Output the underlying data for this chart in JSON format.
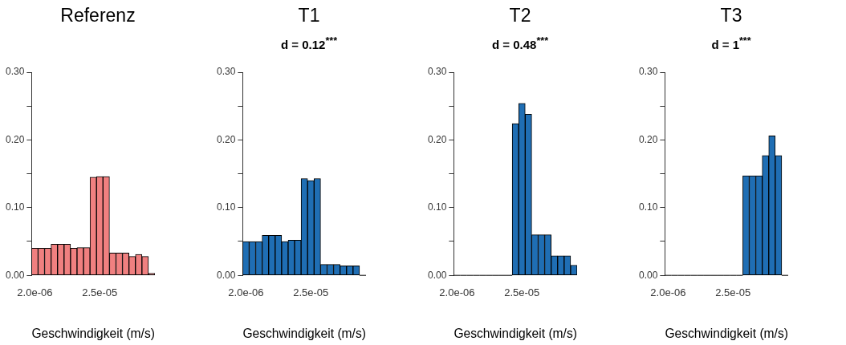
{
  "chart_data": [
    {
      "type": "bar",
      "title": "Referenz",
      "xlabel": "Geschwindigkeit (m/s)",
      "categories": [
        "2.0e-06",
        null,
        null,
        null,
        null,
        null,
        null,
        null,
        null,
        null,
        "2.5e-05",
        null,
        null,
        null,
        null,
        null,
        null,
        null,
        null
      ],
      "color": "#f08080",
      "values": [
        0.04,
        0.04,
        0.04,
        0.046,
        0.046,
        0.046,
        0.04,
        0.041,
        0.041,
        0.145,
        0.146,
        0.146,
        0.033,
        0.033,
        0.033,
        0.028,
        0.031,
        0.028,
        0.003
      ],
      "ylim": [
        0,
        0.3
      ],
      "yticks": [
        {
          "value": 0,
          "label": "0.00"
        },
        {
          "value": 0.05,
          "label": null
        },
        {
          "value": 0.1,
          "label": "0.10"
        },
        {
          "value": 0.15,
          "label": null
        },
        {
          "value": 0.2,
          "label": "0.20"
        },
        {
          "value": 0.25,
          "label": null
        },
        {
          "value": 0.3,
          "label": "0.30"
        }
      ]
    },
    {
      "type": "bar",
      "title": "T1",
      "subtitle": "d = 0.12$^{***}$",
      "xlabel": "Geschwindigkeit (m/s)",
      "categories": [
        "2.0e-06",
        null,
        null,
        null,
        null,
        null,
        null,
        null,
        null,
        null,
        "2.5e-05",
        null,
        null,
        null,
        null,
        null,
        null,
        null,
        null
      ],
      "color": "#1f6eb4",
      "values": [
        0.05,
        0.05,
        0.05,
        0.059,
        0.059,
        0.059,
        0.05,
        0.052,
        0.052,
        0.143,
        0.14,
        0.143,
        0.016,
        0.016,
        0.016,
        0.014,
        0.014,
        0.014,
        0
      ],
      "ylim": [
        0,
        0.3
      ],
      "yticks": [
        {
          "value": 0,
          "label": "0.00"
        },
        {
          "value": 0.05,
          "label": null
        },
        {
          "value": 0.1,
          "label": "0.10"
        },
        {
          "value": 0.15,
          "label": null
        },
        {
          "value": 0.2,
          "label": "0.20"
        },
        {
          "value": 0.25,
          "label": null
        },
        {
          "value": 0.3,
          "label": "0.30"
        }
      ]
    },
    {
      "type": "bar",
      "title": "T2",
      "subtitle": "d = 0.48$^{***}$",
      "xlabel": "Geschwindigkeit (m/s)",
      "categories": [
        "2.0e-06",
        null,
        null,
        null,
        null,
        null,
        null,
        null,
        null,
        null,
        "2.5e-05",
        null,
        null,
        null,
        null,
        null,
        null,
        null,
        null
      ],
      "color": "#1f6eb4",
      "values": [
        0,
        0,
        0,
        0,
        0,
        0,
        0,
        0,
        0,
        0.224,
        0.254,
        0.238,
        0.06,
        0.06,
        0.06,
        0.029,
        0.029,
        0.029,
        0.015
      ],
      "ylim": [
        0,
        0.3
      ],
      "yticks": [
        {
          "value": 0,
          "label": "0.00"
        },
        {
          "value": 0.05,
          "label": null
        },
        {
          "value": 0.1,
          "label": "0.10"
        },
        {
          "value": 0.15,
          "label": null
        },
        {
          "value": 0.2,
          "label": "0.20"
        },
        {
          "value": 0.25,
          "label": null
        },
        {
          "value": 0.3,
          "label": "0.30"
        }
      ]
    },
    {
      "type": "bar",
      "title": "T3",
      "subtitle": "d = 1$^{***}$",
      "xlabel": "Geschwindigkeit (m/s)",
      "categories": [
        "2.0e-06",
        null,
        null,
        null,
        null,
        null,
        null,
        null,
        null,
        null,
        "2.5e-05",
        null,
        null,
        null,
        null,
        null,
        null,
        null,
        null
      ],
      "color": "#1f6eb4",
      "values": [
        0,
        0,
        0,
        0,
        0,
        0,
        0,
        0,
        0,
        0,
        0,
        0,
        0.147,
        0.147,
        0.147,
        0.177,
        0.206,
        0.177,
        0
      ],
      "ylim": [
        0,
        0.3
      ],
      "yticks": [
        {
          "value": 0,
          "label": "0.00"
        },
        {
          "value": 0.05,
          "label": null
        },
        {
          "value": 0.1,
          "label": "0.10"
        },
        {
          "value": 0.15,
          "label": null
        },
        {
          "value": 0.2,
          "label": "0.20"
        },
        {
          "value": 0.25,
          "label": null
        },
        {
          "value": 0.3,
          "label": "0.30"
        }
      ]
    }
  ]
}
